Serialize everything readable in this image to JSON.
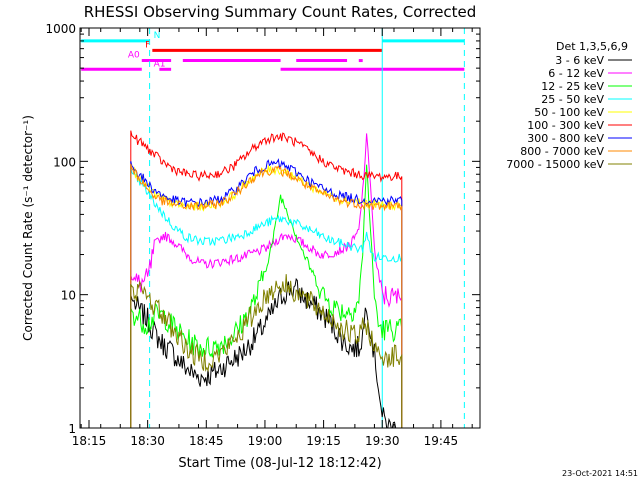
{
  "chart_data": {
    "type": "line",
    "title": "RHESSI Observing Summary Count Rates, Corrected",
    "xlabel": "Start Time (08-Jul-12 18:12:42)",
    "ylabel": "Corrected Count Rate (s⁻¹ detector⁻¹)",
    "footer": "23-Oct-2021 14:51",
    "x_axis": {
      "unit": "minutes of day",
      "range": [
        1092.7,
        1195.0
      ],
      "ticks": [
        {
          "value": 1095,
          "label": "18:15"
        },
        {
          "value": 1110,
          "label": "18:30"
        },
        {
          "value": 1125,
          "label": "18:45"
        },
        {
          "value": 1140,
          "label": "19:00"
        },
        {
          "value": 1155,
          "label": "19:15"
        },
        {
          "value": 1170,
          "label": "19:30"
        },
        {
          "value": 1185,
          "label": "19:45"
        }
      ]
    },
    "y_axis": {
      "scale": "log",
      "range": [
        1,
        1000
      ],
      "ticks": [
        {
          "value": 1,
          "label": "1"
        },
        {
          "value": 10,
          "label": "10"
        },
        {
          "value": 100,
          "label": "100"
        },
        {
          "value": 1000,
          "label": "1000"
        }
      ]
    },
    "legend": {
      "title": "Det 1,3,5,6,9",
      "placement": "right"
    },
    "series": [
      {
        "name": "3 - 6 keV",
        "color": "#000000",
        "x": [
          1105.7,
          1106,
          1108,
          1110,
          1112,
          1114,
          1116,
          1118,
          1120,
          1122,
          1124,
          1126,
          1128,
          1130,
          1132,
          1134,
          1136,
          1138,
          1140,
          1142,
          1144,
          1146,
          1148,
          1150,
          1152,
          1154,
          1156,
          1158,
          1160,
          1162,
          1164,
          1165,
          1166,
          1167,
          1168,
          1169,
          1170,
          1172,
          1174,
          1175
        ],
        "y": [
          10,
          9.2,
          7.5,
          6.5,
          5.0,
          4.2,
          3.8,
          3.2,
          2.8,
          2.5,
          2.4,
          2.5,
          2.7,
          3.0,
          3.3,
          3.6,
          4.2,
          5.0,
          6.0,
          7.5,
          9.5,
          11.0,
          11.0,
          9.5,
          8.5,
          7.5,
          6.5,
          5.5,
          4.5,
          4.0,
          4.0,
          5.0,
          9.0,
          5.5,
          3.5,
          2.2,
          1.2,
          1.0,
          1.0,
          1.0
        ]
      },
      {
        "name": "6 - 12 keV",
        "color": "#ff00ff",
        "x": [
          1105.7,
          1106,
          1108,
          1110,
          1112,
          1114,
          1116,
          1118,
          1120,
          1122,
          1124,
          1126,
          1128,
          1130,
          1132,
          1134,
          1136,
          1138,
          1140,
          1142,
          1144,
          1146,
          1148,
          1150,
          1152,
          1154,
          1156,
          1158,
          1160,
          1162,
          1164,
          1165,
          1166,
          1167,
          1168,
          1169,
          1170,
          1172,
          1174,
          1175
        ],
        "y": [
          14,
          13,
          12,
          13,
          24,
          28,
          26,
          23,
          20,
          18,
          17,
          17,
          17.5,
          18,
          18.5,
          19,
          20,
          21,
          22,
          24,
          27,
          28,
          26,
          24,
          22,
          20,
          20,
          21,
          22,
          24,
          30,
          60,
          150,
          70,
          22,
          13,
          10,
          9.5,
          9.5,
          9.5
        ]
      },
      {
        "name": "12 - 25 keV",
        "color": "#00ff00",
        "x": [
          1105.7,
          1106,
          1108,
          1110,
          1112,
          1114,
          1116,
          1118,
          1120,
          1122,
          1124,
          1126,
          1128,
          1130,
          1132,
          1134,
          1136,
          1138,
          1140,
          1142,
          1144,
          1146,
          1148,
          1150,
          1152,
          1154,
          1156,
          1158,
          1160,
          1162,
          1164,
          1165,
          1166,
          1167,
          1168,
          1169,
          1170,
          1172,
          1174,
          1175
        ],
        "y": [
          8,
          7.5,
          6.5,
          6.0,
          7.0,
          7.0,
          6.0,
          5.2,
          4.6,
          4.2,
          4.0,
          4.0,
          4.2,
          4.5,
          5.0,
          6.0,
          7.5,
          10,
          15,
          25,
          55,
          40,
          28,
          20,
          15,
          11,
          9,
          8,
          7.5,
          7.5,
          9,
          20,
          100,
          30,
          10,
          6.0,
          5.5,
          5.5,
          5.5,
          5.5
        ]
      },
      {
        "name": "25 - 50 keV",
        "color": "#00ffff",
        "x": [
          1105.7,
          1106,
          1108,
          1110,
          1112,
          1114,
          1116,
          1118,
          1120,
          1122,
          1124,
          1126,
          1128,
          1130,
          1132,
          1134,
          1136,
          1138,
          1140,
          1142,
          1144,
          1146,
          1148,
          1150,
          1152,
          1154,
          1156,
          1158,
          1160,
          1162,
          1164,
          1165,
          1166,
          1167,
          1168,
          1169,
          1170,
          1172,
          1174,
          1175
        ],
        "y": [
          90,
          82,
          70,
          58,
          48,
          40,
          34,
          30,
          27,
          26,
          25,
          25,
          25.5,
          26,
          27,
          28,
          30,
          32,
          34,
          36,
          37,
          36,
          34,
          32,
          30,
          28,
          26,
          25,
          24,
          23,
          22,
          22,
          30,
          21,
          19,
          19,
          19,
          19,
          19,
          19
        ]
      },
      {
        "name": "50 - 100 keV",
        "color": "#ffff00",
        "x": [
          1105.7,
          1106,
          1108,
          1110,
          1112,
          1114,
          1116,
          1118,
          1120,
          1122,
          1124,
          1126,
          1128,
          1130,
          1132,
          1134,
          1136,
          1138,
          1140,
          1142,
          1144,
          1146,
          1148,
          1150,
          1152,
          1154,
          1156,
          1158,
          1160,
          1162,
          1164,
          1165,
          1166,
          1167,
          1168,
          1169,
          1170,
          1172,
          1174,
          1175
        ],
        "y": [
          95,
          88,
          75,
          64,
          56,
          52,
          49,
          47,
          46,
          46,
          46,
          47,
          48,
          51,
          56,
          63,
          72,
          80,
          85,
          87,
          86,
          82,
          76,
          70,
          64,
          60,
          57,
          54,
          52,
          51,
          50,
          49,
          49,
          48,
          48,
          47,
          47,
          47,
          47,
          47
        ]
      },
      {
        "name": "100 - 300 keV",
        "color": "#ff0000",
        "x": [
          1105.7,
          1106,
          1108,
          1110,
          1112,
          1114,
          1116,
          1118,
          1120,
          1122,
          1124,
          1126,
          1128,
          1130,
          1132,
          1134,
          1136,
          1138,
          1140,
          1142,
          1144,
          1146,
          1148,
          1150,
          1152,
          1154,
          1156,
          1158,
          1160,
          1162,
          1164,
          1165,
          1166,
          1167,
          1168,
          1169,
          1170,
          1172,
          1174,
          1175
        ],
        "y": [
          170,
          155,
          140,
          125,
          110,
          98,
          90,
          84,
          80,
          78,
          78,
          79,
          81,
          85,
          92,
          103,
          118,
          132,
          145,
          152,
          153,
          148,
          138,
          126,
          114,
          104,
          96,
          90,
          85,
          82,
          80,
          79,
          78,
          78,
          77,
          77,
          77,
          77,
          77,
          77
        ]
      },
      {
        "name": "300 - 800 keV",
        "color": "#0000ff",
        "x": [
          1105.7,
          1106,
          1108,
          1110,
          1112,
          1114,
          1116,
          1118,
          1120,
          1122,
          1124,
          1126,
          1128,
          1130,
          1132,
          1134,
          1136,
          1138,
          1140,
          1142,
          1144,
          1146,
          1148,
          1150,
          1152,
          1154,
          1156,
          1158,
          1160,
          1162,
          1164,
          1165,
          1166,
          1167,
          1168,
          1169,
          1170,
          1172,
          1174,
          1175
        ],
        "y": [
          100,
          92,
          80,
          68,
          60,
          55,
          52,
          50,
          49,
          49,
          49,
          50,
          52,
          55,
          60,
          68,
          78,
          86,
          92,
          96,
          95,
          90,
          83,
          76,
          69,
          64,
          60,
          57,
          55,
          53,
          52,
          52,
          51,
          51,
          51,
          51,
          51,
          51,
          51,
          51
        ]
      },
      {
        "name": "800 - 7000 keV",
        "color": "#ff8800",
        "x": [
          1105.7,
          1106,
          1108,
          1110,
          1112,
          1114,
          1116,
          1118,
          1120,
          1122,
          1124,
          1126,
          1128,
          1130,
          1132,
          1134,
          1136,
          1138,
          1140,
          1142,
          1144,
          1146,
          1148,
          1150,
          1152,
          1154,
          1156,
          1158,
          1160,
          1162,
          1164,
          1165,
          1166,
          1167,
          1168,
          1169,
          1170,
          1172,
          1174,
          1175
        ],
        "y": [
          96,
          88,
          74,
          62,
          54,
          50,
          48,
          47,
          46,
          46,
          46,
          47,
          48,
          51,
          56,
          63,
          72,
          79,
          84,
          86,
          85,
          80,
          74,
          68,
          62,
          58,
          55,
          52,
          50,
          49,
          48,
          47,
          47,
          47,
          46,
          46,
          46,
          46,
          46,
          46
        ]
      },
      {
        "name": "7000 - 15000 keV",
        "color": "#808000",
        "x": [
          1105.7,
          1106,
          1108,
          1110,
          1112,
          1114,
          1116,
          1118,
          1120,
          1122,
          1124,
          1126,
          1128,
          1130,
          1132,
          1134,
          1136,
          1138,
          1140,
          1142,
          1144,
          1146,
          1148,
          1150,
          1152,
          1154,
          1156,
          1158,
          1160,
          1162,
          1164,
          1165,
          1166,
          1167,
          1168,
          1169,
          1170,
          1172,
          1174,
          1175
        ],
        "y": [
          12,
          11.5,
          10.5,
          9.5,
          8.2,
          7.0,
          5.8,
          4.8,
          4.0,
          3.5,
          3.3,
          3.3,
          3.5,
          3.9,
          4.5,
          5.3,
          6.5,
          8.0,
          9.5,
          11,
          12,
          11.5,
          10.5,
          9.5,
          8.5,
          7.8,
          7.0,
          6.3,
          5.5,
          5.0,
          4.8,
          5.5,
          6.0,
          5.0,
          4.0,
          3.5,
          3.5,
          3.5,
          3.5,
          3.5
        ]
      }
    ],
    "status_bars": [
      {
        "label": "N",
        "color": "#00ffff",
        "level": 800,
        "segments": [
          [
            1093,
            1110.5
          ],
          [
            1170,
            1191
          ]
        ]
      },
      {
        "label": "F",
        "color": "#ff0000",
        "level": 680,
        "segments": [
          [
            1111.2,
            1170
          ]
        ]
      },
      {
        "label": "A0",
        "color": "#ff00ff",
        "level": 570,
        "segments": [
          [
            1108.5,
            1116
          ],
          [
            1119,
            1144
          ],
          [
            1148,
            1161
          ],
          [
            1164,
            1165
          ]
        ]
      },
      {
        "label": "A1",
        "color": "#ff00ff",
        "level": 490,
        "segments": [
          [
            1093,
            1108.5
          ],
          [
            1113,
            1116
          ],
          [
            1144,
            1191
          ]
        ]
      }
    ],
    "boundaries": [
      {
        "x": 1110.5,
        "style": "dashed",
        "color": "#00ffff"
      },
      {
        "x": 1170,
        "style": "solid",
        "color": "#00ffff"
      },
      {
        "x": 1191,
        "style": "dashed",
        "color": "#00ffff"
      }
    ],
    "grid": false
  }
}
